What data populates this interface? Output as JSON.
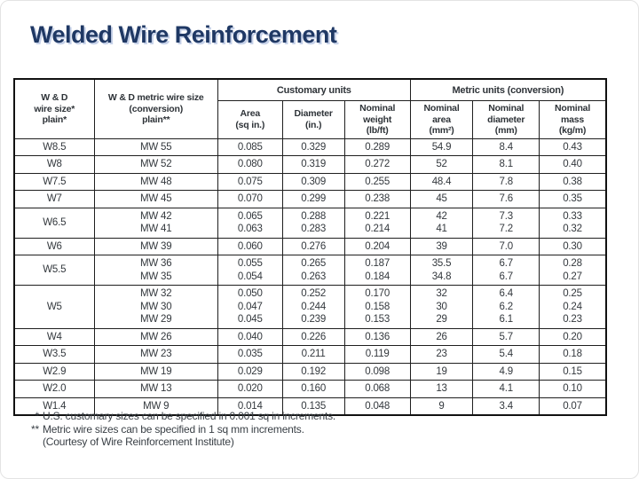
{
  "slide": {
    "title": "Welded Wire Reinforcement"
  },
  "table": {
    "corner_headers": [
      "W & D\nwire size*\nplain*",
      "W & D metric wire size\n(conversion)\nplain**"
    ],
    "group_headers": [
      "Customary units",
      "Metric units (conversion)"
    ],
    "sub_headers": [
      "Area\n(sq in.)",
      "Diameter\n(in.)",
      "Nominal\nweight\n(lb/ft)",
      "Nominal\narea\n(mm²)",
      "Nominal\ndiameter\n(mm)",
      "Nominal\nmass\n(kg/m)"
    ],
    "rows": [
      {
        "cells": [
          "W8.5",
          "MW 55",
          "0.085",
          "0.329",
          "0.289",
          "54.9",
          "8.4",
          "0.43"
        ]
      },
      {
        "cells": [
          "W8",
          "MW 52",
          "0.080",
          "0.319",
          "0.272",
          "52",
          "8.1",
          "0.40"
        ]
      },
      {
        "cells": [
          "W7.5",
          "MW 48",
          "0.075",
          "0.309",
          "0.255",
          "48.4",
          "7.8",
          "0.38"
        ]
      },
      {
        "cells": [
          "W7",
          "MW 45",
          "0.070",
          "0.299",
          "0.238",
          "45",
          "7.6",
          "0.35"
        ]
      },
      {
        "cells": [
          "W6.5",
          "MW 42\nMW 41",
          "0.065\n0.063",
          "0.288\n0.283",
          "0.221\n0.214",
          "42\n41",
          "7.3\n7.2",
          "0.33\n0.32"
        ]
      },
      {
        "cells": [
          "W6",
          "MW 39",
          "0.060",
          "0.276",
          "0.204",
          "39",
          "7.0",
          "0.30"
        ]
      },
      {
        "cells": [
          "W5.5",
          "MW 36\nMW 35",
          "0.055\n0.054",
          "0.265\n0.263",
          "0.187\n0.184",
          "35.5\n34.8",
          "6.7\n6.7",
          "0.28\n0.27"
        ]
      },
      {
        "cells": [
          "W5",
          "MW 32\nMW 30\nMW 29",
          "0.050\n0.047\n0.045",
          "0.252\n0.244\n0.239",
          "0.170\n0.158\n0.153",
          "32\n30\n29",
          "6.4\n6.2\n6.1",
          "0.25\n0.24\n0.23"
        ]
      },
      {
        "cells": [
          "W4",
          "MW 26",
          "0.040",
          "0.226",
          "0.136",
          "26",
          "5.7",
          "0.20"
        ]
      },
      {
        "cells": [
          "W3.5",
          "MW 23",
          "0.035",
          "0.211",
          "0.119",
          "23",
          "5.4",
          "0.18"
        ]
      },
      {
        "cells": [
          "W2.9",
          "MW 19",
          "0.029",
          "0.192",
          "0.098",
          "19",
          "4.9",
          "0.15"
        ]
      },
      {
        "cells": [
          "W2.0",
          "MW 13",
          "0.020",
          "0.160",
          "0.068",
          "13",
          "4.1",
          "0.10"
        ]
      },
      {
        "cells": [
          "W1.4",
          "MW 9",
          "0.014",
          "0.135",
          "0.048",
          "9",
          "3.4",
          "0.07"
        ]
      }
    ]
  },
  "footnotes": [
    {
      "marker": "*",
      "text": "U.S. customary sizes can be specified in 0.001 sq in increments."
    },
    {
      "marker": "**",
      "text": "Metric wire sizes can be specified in 1 sq mm increments."
    },
    {
      "marker": "",
      "text": "(Courtesy of Wire Reinforcement Institute)"
    }
  ]
}
